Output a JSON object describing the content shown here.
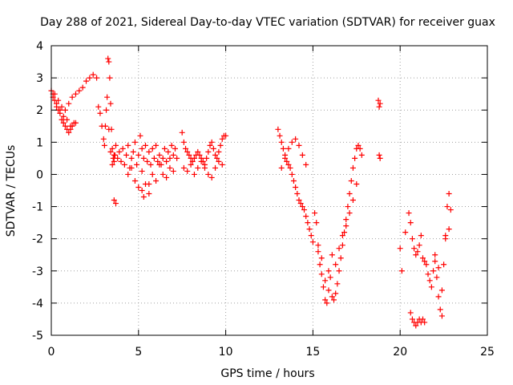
{
  "chart_data": {
    "type": "scatter",
    "title": "Day 288 of 2021, Sidereal Day-to-day VTEC variation (SDTVAR) for receiver guax",
    "xlabel": "GPS time / hours",
    "ylabel": "SDTVAR / TECUs",
    "xlim": [
      0,
      25
    ],
    "ylim": [
      -5,
      4
    ],
    "xticks": [
      "0",
      "5",
      "10",
      "15",
      "20",
      "25"
    ],
    "yticks": [
      "-5",
      "-4",
      "-3",
      "-2",
      "-1",
      "0",
      "1",
      "2",
      "3",
      "4"
    ],
    "grid": true,
    "legend": "none",
    "marker": "+",
    "color": "#ff0000",
    "series": [
      {
        "x": [
          0.0,
          0.1,
          0.2,
          0.3,
          0.4,
          0.5,
          0.6,
          0.7,
          0.8,
          0.9,
          1.0,
          1.1,
          1.2,
          1.3,
          1.4,
          0.2,
          0.4,
          0.6,
          0.8,
          1.0,
          1.2,
          1.4,
          1.6,
          1.8,
          2.0,
          2.2,
          2.4,
          2.6,
          0.1,
          0.3,
          0.5,
          0.7,
          0.9,
          1.1,
          2.7,
          2.8,
          2.9,
          3.0,
          3.05,
          3.1,
          3.15,
          3.2,
          3.25,
          3.3,
          3.35,
          3.4,
          3.45,
          3.5,
          3.55,
          3.6,
          3.65,
          3.3,
          3.4,
          3.5,
          3.6,
          3.7,
          3.8,
          3.9,
          4.0,
          4.1,
          4.2,
          4.3,
          4.4,
          4.5,
          4.6,
          4.7,
          4.8,
          4.9,
          5.0,
          5.1,
          5.2,
          5.3,
          5.4,
          5.5,
          5.6,
          5.7,
          5.8,
          5.9,
          6.0,
          6.1,
          6.2,
          6.3,
          6.4,
          6.5,
          6.6,
          6.7,
          6.8,
          6.9,
          7.0,
          7.1,
          7.2,
          4.4,
          4.6,
          4.8,
          5.0,
          5.2,
          5.4,
          5.6,
          5.8,
          6.0,
          6.2,
          6.4,
          6.6,
          6.8,
          7.0,
          3.6,
          3.7,
          5.2,
          5.3,
          5.6,
          7.5,
          7.6,
          7.7,
          7.8,
          7.9,
          8.0,
          8.1,
          8.2,
          8.3,
          8.4,
          8.5,
          8.6,
          8.7,
          8.8,
          8.9,
          9.0,
          9.1,
          9.2,
          9.3,
          9.4,
          9.5,
          9.6,
          9.7,
          9.8,
          9.9,
          10.0,
          7.6,
          7.8,
          8.0,
          8.2,
          8.4,
          8.6,
          8.8,
          9.0,
          9.2,
          9.4,
          9.6,
          9.8,
          13.0,
          13.1,
          13.2,
          13.3,
          13.4,
          13.5,
          13.6,
          13.7,
          13.8,
          13.9,
          14.0,
          14.1,
          14.2,
          14.3,
          14.4,
          14.5,
          14.6,
          14.7,
          14.8,
          14.9,
          15.0,
          13.2,
          13.4,
          13.6,
          13.8,
          14.0,
          14.2,
          14.4,
          14.6,
          15.1,
          15.2,
          15.3,
          15.4,
          15.5,
          15.6,
          15.7,
          15.8,
          15.9,
          16.0,
          16.1,
          16.2,
          16.3,
          16.4,
          16.5,
          16.6,
          16.7,
          16.8,
          16.9,
          17.0,
          17.1,
          17.2,
          17.3,
          17.4,
          17.5,
          17.6,
          17.7,
          17.8,
          15.3,
          15.5,
          15.7,
          15.9,
          16.1,
          16.3,
          16.5,
          16.7,
          16.9,
          17.1,
          17.3,
          17.5,
          18.75,
          18.8,
          18.85,
          18.8,
          18.85,
          20.0,
          20.1,
          20.3,
          20.5,
          20.6,
          20.7,
          20.8,
          20.9,
          21.0,
          21.1,
          21.2,
          21.3,
          21.4,
          20.6,
          20.7,
          20.8,
          20.9,
          21.0,
          21.1,
          21.2,
          21.3,
          21.4,
          21.5,
          21.6,
          21.7,
          21.8,
          21.9,
          22.0,
          22.1,
          22.2,
          22.3,
          22.4,
          22.5,
          22.6,
          22.7,
          22.8,
          22.9,
          22.0,
          22.2,
          22.4,
          22.6,
          22.8
        ],
        "y": [
          2.6,
          2.5,
          2.3,
          2.1,
          2.0,
          1.9,
          1.7,
          1.6,
          1.5,
          1.4,
          1.3,
          1.4,
          1.5,
          1.6,
          1.6,
          2.5,
          2.3,
          2.1,
          2.0,
          2.2,
          2.4,
          2.5,
          2.6,
          2.7,
          2.9,
          3.0,
          3.1,
          3.0,
          2.4,
          2.2,
          2.0,
          1.8,
          1.7,
          1.5,
          2.1,
          1.9,
          1.5,
          1.1,
          0.9,
          1.5,
          2.0,
          2.4,
          3.6,
          3.5,
          3.0,
          2.2,
          1.4,
          0.8,
          0.5,
          0.4,
          0.6,
          1.4,
          0.7,
          0.3,
          0.6,
          0.9,
          0.5,
          0.7,
          0.4,
          0.8,
          0.3,
          0.6,
          0.9,
          0.2,
          0.5,
          0.7,
          1.0,
          0.3,
          0.6,
          1.2,
          0.8,
          0.5,
          0.9,
          0.4,
          0.7,
          0.3,
          0.8,
          0.5,
          0.9,
          0.4,
          0.6,
          0.3,
          0.5,
          0.8,
          0.4,
          0.7,
          0.5,
          0.9,
          0.6,
          0.8,
          0.5,
          0.0,
          0.2,
          -0.2,
          -0.4,
          0.1,
          -0.3,
          -0.6,
          0.0,
          -0.2,
          0.3,
          0.0,
          -0.1,
          0.2,
          0.1,
          -0.8,
          -0.9,
          -0.5,
          -0.7,
          -0.3,
          1.3,
          1.0,
          0.8,
          0.7,
          0.6,
          0.5,
          0.4,
          0.5,
          0.6,
          0.7,
          0.6,
          0.5,
          0.4,
          0.3,
          0.5,
          0.7,
          0.9,
          1.0,
          0.8,
          0.6,
          0.5,
          0.7,
          0.9,
          1.1,
          1.2,
          1.2,
          0.2,
          0.1,
          0.3,
          0.0,
          0.2,
          0.4,
          0.2,
          0.0,
          -0.1,
          0.2,
          0.4,
          0.3,
          1.4,
          1.2,
          1.0,
          0.8,
          0.6,
          0.4,
          0.3,
          0.2,
          0.0,
          -0.2,
          -0.4,
          -0.6,
          -0.8,
          -0.9,
          -1.0,
          -1.1,
          -1.3,
          -1.5,
          -1.7,
          -1.9,
          -2.1,
          0.2,
          0.5,
          0.8,
          1.0,
          1.1,
          0.9,
          0.6,
          0.3,
          -1.2,
          -1.5,
          -2.2,
          -2.8,
          -3.1,
          -3.5,
          -3.9,
          -4.0,
          -3.6,
          -3.2,
          -3.8,
          -3.9,
          -3.7,
          -3.4,
          -3.0,
          -2.6,
          -2.2,
          -1.8,
          -1.4,
          -1.0,
          -0.6,
          -0.2,
          0.2,
          0.5,
          0.8,
          0.9,
          0.8,
          0.6,
          -2.4,
          -2.6,
          -3.3,
          -3.0,
          -2.5,
          -2.8,
          -2.3,
          -1.9,
          -1.6,
          -1.2,
          -0.8,
          -0.3,
          2.3,
          2.1,
          2.2,
          0.6,
          0.5,
          -2.3,
          -3.0,
          -1.8,
          -1.2,
          -1.5,
          -2.0,
          -2.3,
          -2.5,
          -2.4,
          -2.2,
          -1.9,
          -2.6,
          -2.7,
          -4.3,
          -4.5,
          -4.6,
          -4.7,
          -4.6,
          -4.5,
          -4.6,
          -4.5,
          -4.6,
          -2.8,
          -3.1,
          -3.3,
          -3.5,
          -3.0,
          -2.7,
          -3.2,
          -3.8,
          -4.2,
          -3.6,
          -2.8,
          -1.9,
          -1.0,
          -0.6,
          -1.1,
          -2.5,
          -2.9,
          -4.4,
          -2.0,
          -1.7
        ]
      }
    ]
  }
}
